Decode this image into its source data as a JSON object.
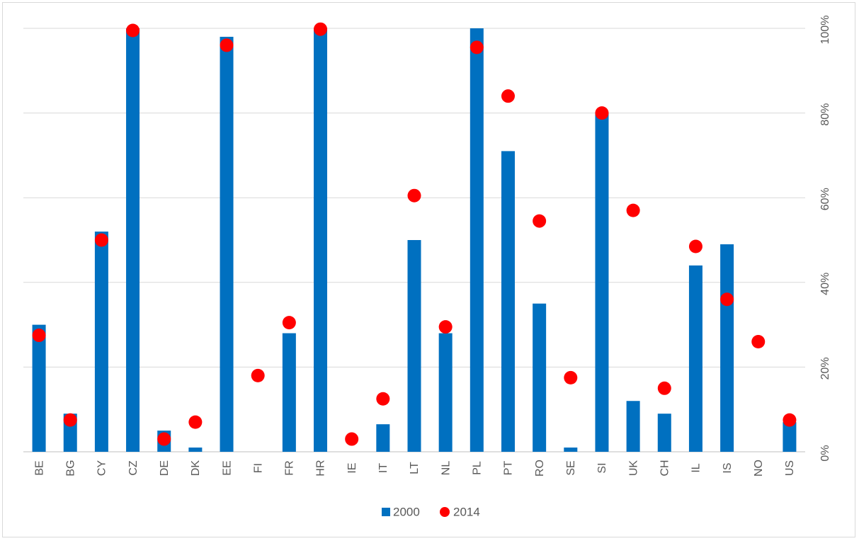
{
  "chart_data": {
    "type": "bar",
    "categories": [
      "BE",
      "BG",
      "CY",
      "CZ",
      "DE",
      "DK",
      "EE",
      "FI",
      "FR",
      "HR",
      "IE",
      "IT",
      "LT",
      "NL",
      "PL",
      "PT",
      "RO",
      "SE",
      "SI",
      "UK",
      "CH",
      "IL",
      "IS",
      "NO",
      "US"
    ],
    "series": [
      {
        "name": "2000",
        "type": "bar",
        "color": "#0070c0",
        "values": [
          0.3,
          0.09,
          0.52,
          1.0,
          0.05,
          0.01,
          0.98,
          0,
          0.28,
          1.0,
          0,
          0.065,
          0.5,
          0.28,
          1.0,
          0.71,
          0.35,
          0.01,
          0.8,
          0.12,
          0.09,
          0.44,
          0.49,
          0,
          0.07
        ]
      },
      {
        "name": "2014",
        "type": "scatter",
        "color": "#ff0000",
        "values": [
          0.275,
          0.075,
          0.5,
          0.995,
          0.03,
          0.07,
          0.96,
          0.18,
          0.305,
          0.998,
          0.03,
          0.125,
          0.605,
          0.295,
          0.955,
          0.84,
          0.545,
          0.175,
          0.8,
          0.57,
          0.15,
          0.485,
          0.36,
          0.26,
          0.075
        ]
      }
    ],
    "y_ticks": [
      "0%",
      "20%",
      "40%",
      "60%",
      "80%",
      "100%"
    ],
    "ylim": [
      0,
      1
    ],
    "y_axis_position": "right",
    "grid": true,
    "legend": {
      "position": "bottom",
      "items": [
        "2000",
        "2014"
      ]
    }
  }
}
